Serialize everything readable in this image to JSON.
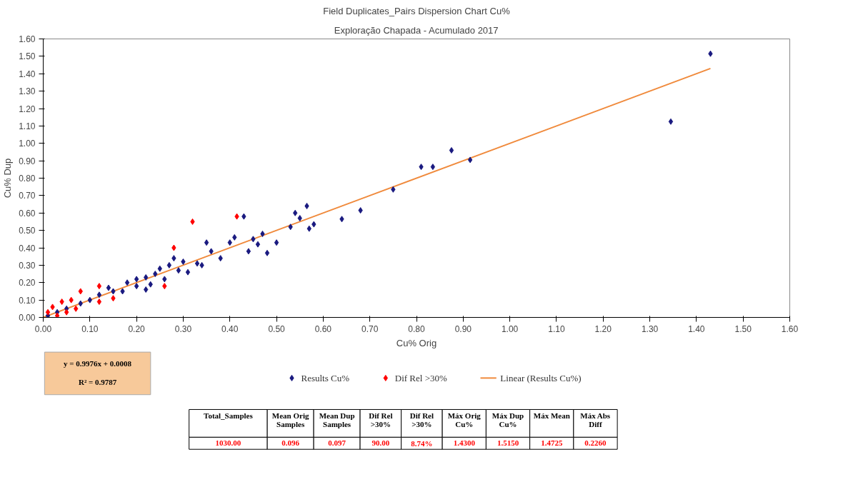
{
  "chart_data": {
    "type": "scatter",
    "title": "Field Duplicates_Pairs Dispersion Chart Cu%",
    "subtitle": "Exploração Chapada - Acumulado 2017",
    "xlabel": "Cu% Orig",
    "ylabel": "Cu% Dup",
    "xlim": [
      0,
      1.6
    ],
    "ylim": [
      0,
      1.6
    ],
    "xticks": [
      {
        "value": 0,
        "label": "0.00"
      },
      {
        "value": 0.1,
        "label": "0.10"
      },
      {
        "value": 0.2,
        "label": "0.20"
      },
      {
        "value": 0.3,
        "label": "0.30"
      },
      {
        "value": 0.4,
        "label": "0.40"
      },
      {
        "value": 0.5,
        "label": "0.50"
      },
      {
        "value": 0.6,
        "label": "0.60"
      },
      {
        "value": 0.7,
        "label": "0.70"
      },
      {
        "value": 0.8,
        "label": "0.80"
      },
      {
        "value": 0.9,
        "label": "0.90"
      },
      {
        "value": 1,
        "label": "1.00"
      },
      {
        "value": 1.1,
        "label": "1.10"
      },
      {
        "value": 1.2,
        "label": "1.20"
      },
      {
        "value": 1.3,
        "label": "1.30"
      },
      {
        "value": 1.4,
        "label": "1.40"
      },
      {
        "value": 1.5,
        "label": "1.50"
      },
      {
        "value": 1.6,
        "label": "1.60"
      }
    ],
    "yticks": [
      {
        "value": 0,
        "label": "0.00"
      },
      {
        "value": 0.1,
        "label": "0.10"
      },
      {
        "value": 0.2,
        "label": "0.20"
      },
      {
        "value": 0.3,
        "label": "0.30"
      },
      {
        "value": 0.4,
        "label": "0.40"
      },
      {
        "value": 0.5,
        "label": "0.50"
      },
      {
        "value": 0.6,
        "label": "0.60"
      },
      {
        "value": 0.7,
        "label": "0.70"
      },
      {
        "value": 0.8,
        "label": "0.80"
      },
      {
        "value": 0.9,
        "label": "0.90"
      },
      {
        "value": 1,
        "label": "1.00"
      },
      {
        "value": 1.1,
        "label": "1.10"
      },
      {
        "value": 1.2,
        "label": "1.20"
      },
      {
        "value": 1.3,
        "label": "1.30"
      },
      {
        "value": 1.4,
        "label": "1.40"
      },
      {
        "value": 1.5,
        "label": "1.50"
      },
      {
        "value": 1.6,
        "label": "1.60"
      }
    ],
    "grid": false,
    "legend": "bottom",
    "marker": "diamond",
    "series": [
      {
        "name": "Results Cu%",
        "color": "#1a1a80",
        "x": [
          1.43,
          1.345,
          0.875,
          0.915,
          0.81,
          0.835,
          0.75,
          0.68,
          0.64,
          0.565,
          0.58,
          0.57,
          0.54,
          0.55,
          0.5,
          0.53,
          0.47,
          0.45,
          0.43,
          0.48,
          0.41,
          0.4,
          0.35,
          0.33,
          0.36,
          0.38,
          0.3,
          0.28,
          0.25,
          0.27,
          0.26,
          0.22,
          0.2,
          0.18,
          0.15,
          0.12,
          0.1,
          0.08,
          0.05,
          0.03,
          0.01,
          0.2,
          0.23,
          0.17,
          0.31,
          0.44,
          0.46,
          0.34,
          0.22,
          0.14,
          0.24,
          0.29
        ],
        "values": [
          1.515,
          1.125,
          0.96,
          0.905,
          0.865,
          0.865,
          0.735,
          0.615,
          0.565,
          0.64,
          0.535,
          0.51,
          0.6,
          0.57,
          0.43,
          0.52,
          0.48,
          0.45,
          0.58,
          0.37,
          0.46,
          0.43,
          0.43,
          0.31,
          0.38,
          0.34,
          0.32,
          0.34,
          0.28,
          0.3,
          0.22,
          0.23,
          0.18,
          0.2,
          0.15,
          0.13,
          0.1,
          0.08,
          0.05,
          0.03,
          0.01,
          0.22,
          0.19,
          0.15,
          0.26,
          0.38,
          0.42,
          0.3,
          0.16,
          0.17,
          0.25,
          0.27
        ]
      },
      {
        "name": "Dif Rel >30%",
        "color": "#ff0000",
        "x": [
          0.32,
          0.415,
          0.28,
          0.26,
          0.12,
          0.08,
          0.12,
          0.06,
          0.04,
          0.05,
          0.02,
          0.03,
          0.07,
          0.01,
          0.15
        ],
        "values": [
          0.55,
          0.58,
          0.4,
          0.18,
          0.18,
          0.15,
          0.09,
          0.1,
          0.09,
          0.03,
          0.06,
          0.01,
          0.05,
          0.03,
          0.11
        ]
      },
      {
        "name": "Linear (Results Cu%)",
        "type": "line",
        "marker": "none",
        "color": "#f08a3c",
        "x": [
          0,
          1.43
        ],
        "values": [
          0.0,
          1.43
        ]
      }
    ],
    "annotations": [
      "y = 0.9976x + 0.0008",
      "R² = 0.9787",
      "Total_Samples",
      "Mean Orig\nSamples",
      "Mean Dup\nSamples",
      "Dif Rel\n>30%",
      "Dif Rel\n>30%",
      "Máx Orig\nCu%",
      "Máx Dup\nCu%",
      "Máx Mean",
      "Máx Abs\nDiff",
      "1030.00",
      "0.096",
      "0.097",
      "90.00",
      "8.74%",
      "1.4300",
      "1.5150",
      "1.4725",
      "0.2260"
    ]
  }
}
